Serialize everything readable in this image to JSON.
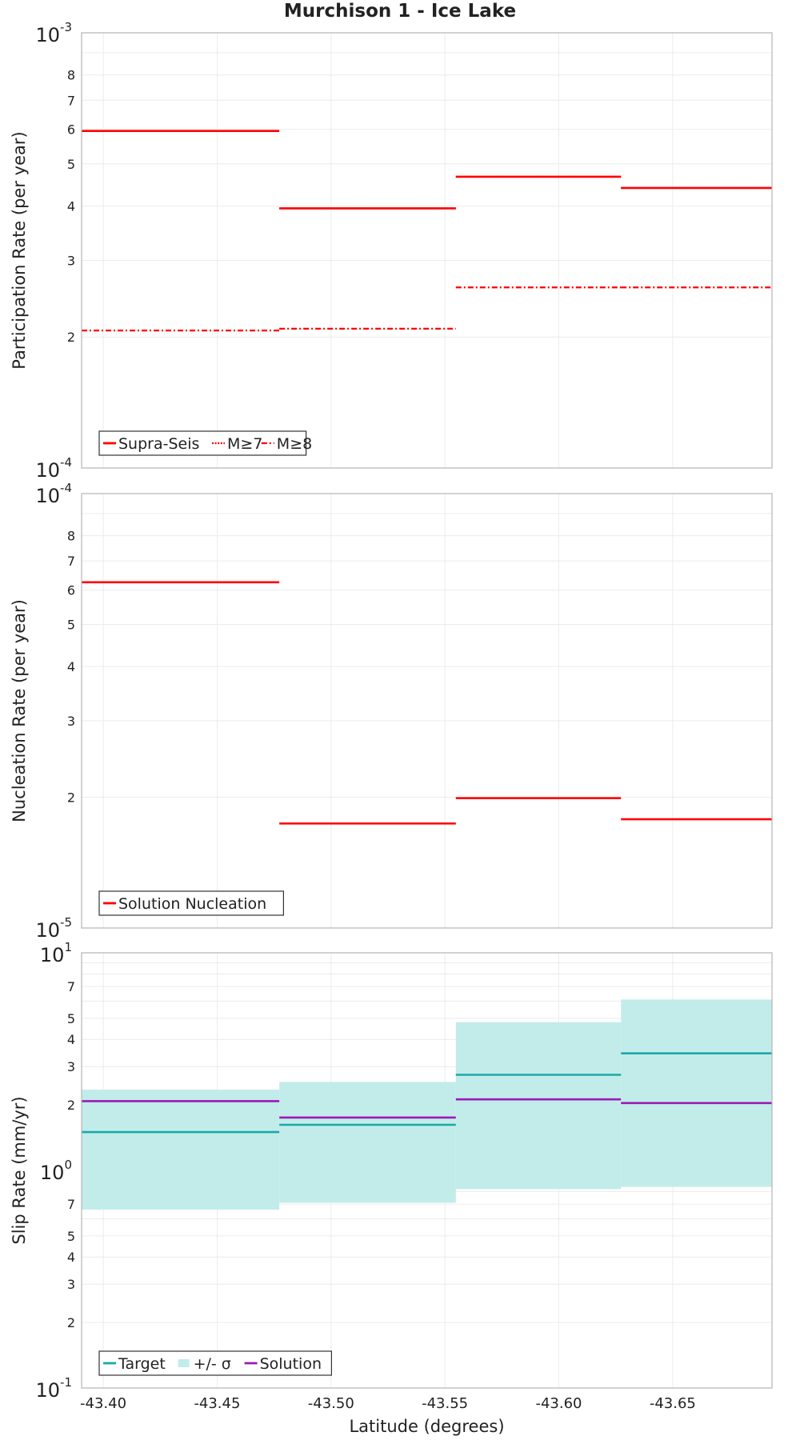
{
  "title": "Murchison 1 - Ice Lake",
  "chart_data": [
    {
      "type": "line",
      "subtype": "step",
      "ylabel": "Participation Rate (per year)",
      "yscale": "log",
      "ylim": [
        0.0001,
        0.001
      ],
      "decade_labels": [
        {
          "value": 0.0001,
          "base": "10",
          "exp": "-4"
        },
        {
          "value": 0.001,
          "base": "10",
          "exp": "-3"
        }
      ],
      "minor_ticks": [
        {
          "value": 0.0002,
          "label": "2"
        },
        {
          "value": 0.0003,
          "label": "3"
        },
        {
          "value": 0.0004,
          "label": "4"
        },
        {
          "value": 0.0005,
          "label": "5"
        },
        {
          "value": 0.0006,
          "label": "6"
        },
        {
          "value": 0.0007,
          "label": "7"
        },
        {
          "value": 0.0008,
          "label": "8"
        }
      ],
      "grid": true,
      "legend_position": "bottom-left",
      "series": [
        {
          "name": "Supra-Seis",
          "color": "#ff0000",
          "style": "solid",
          "steps": [
            [
              -43.3905,
              -43.4773,
              0.000595
            ],
            [
              -43.4773,
              -43.5548,
              0.000395
            ],
            [
              -43.5548,
              -43.6273,
              0.000467
            ],
            [
              -43.6273,
              -43.6936,
              0.00044
            ]
          ]
        },
        {
          "name": "M≥7",
          "color": "#ff0000",
          "style": "dotted",
          "steps": [
            [
              -43.3905,
              -43.4773,
              0.000595
            ],
            [
              -43.4773,
              -43.5548,
              0.000395
            ],
            [
              -43.5548,
              -43.6273,
              0.000467
            ],
            [
              -43.6273,
              -43.6936,
              0.00044
            ]
          ]
        },
        {
          "name": "M≥8",
          "color": "#ff0000",
          "style": "dashdot",
          "steps": [
            [
              -43.3905,
              -43.4773,
              0.000207
            ],
            [
              -43.4773,
              -43.5548,
              0.000209
            ],
            [
              -43.5548,
              -43.6273,
              0.00026
            ],
            [
              -43.6273,
              -43.6936,
              0.00026
            ]
          ]
        }
      ]
    },
    {
      "type": "line",
      "subtype": "step",
      "ylabel": "Nucleation Rate (per year)",
      "yscale": "log",
      "ylim": [
        1e-05,
        0.0001
      ],
      "decade_labels": [
        {
          "value": 1e-05,
          "base": "10",
          "exp": "-5"
        },
        {
          "value": 0.0001,
          "base": "10",
          "exp": "-4"
        }
      ],
      "minor_ticks": [
        {
          "value": 2e-05,
          "label": "2"
        },
        {
          "value": 3e-05,
          "label": "3"
        },
        {
          "value": 4e-05,
          "label": "4"
        },
        {
          "value": 5e-05,
          "label": "5"
        },
        {
          "value": 6e-05,
          "label": "6"
        },
        {
          "value": 7e-05,
          "label": "7"
        },
        {
          "value": 8e-05,
          "label": "8"
        }
      ],
      "grid": true,
      "legend_position": "bottom-left",
      "series": [
        {
          "name": "Solution Nucleation",
          "color": "#ff0000",
          "style": "solid",
          "steps": [
            [
              -43.3905,
              -43.4773,
              6.25e-05
            ],
            [
              -43.4773,
              -43.5548,
              1.74e-05
            ],
            [
              -43.5548,
              -43.6273,
              1.99e-05
            ],
            [
              -43.6273,
              -43.6936,
              1.78e-05
            ]
          ]
        }
      ]
    },
    {
      "type": "line",
      "subtype": "step",
      "ylabel": "Slip Rate (mm/yr)",
      "xlabel": "Latitude (degrees)",
      "yscale": "log",
      "ylim": [
        0.1,
        10
      ],
      "xlim": [
        -43.3905,
        -43.6936
      ],
      "x_ticks": [
        "-43.40",
        "-43.45",
        "-43.50",
        "-43.55",
        "-43.60",
        "-43.65"
      ],
      "x_tick_values": [
        -43.4,
        -43.45,
        -43.5,
        -43.55,
        -43.6,
        -43.65
      ],
      "decade_labels": [
        {
          "value": 0.1,
          "base": "10",
          "exp": "-1"
        },
        {
          "value": 1,
          "base": "10",
          "exp": "0"
        },
        {
          "value": 10,
          "base": "10",
          "exp": "1"
        }
      ],
      "minor_ticks": [
        {
          "value": 0.2,
          "label": "2"
        },
        {
          "value": 0.3,
          "label": "3"
        },
        {
          "value": 0.4,
          "label": "4"
        },
        {
          "value": 0.5,
          "label": "5"
        },
        {
          "value": 0.7,
          "label": "7"
        },
        {
          "value": 2,
          "label": "2"
        },
        {
          "value": 3,
          "label": "3"
        },
        {
          "value": 4,
          "label": "4"
        },
        {
          "value": 5,
          "label": "5"
        },
        {
          "value": 7,
          "label": "7"
        }
      ],
      "grid_minor": [
        0.2,
        0.3,
        0.4,
        0.5,
        0.6,
        0.7,
        0.8,
        0.9,
        2,
        3,
        4,
        5,
        6,
        7,
        8,
        9
      ],
      "grid": true,
      "legend_position": "bottom-left",
      "band": {
        "name": "+/- σ",
        "color": "#c2ecea",
        "steps": [
          [
            -43.3905,
            -43.4773,
            0.66,
            2.35
          ],
          [
            -43.4773,
            -43.5548,
            0.71,
            2.55
          ],
          [
            -43.5548,
            -43.6273,
            0.82,
            4.8
          ],
          [
            -43.6273,
            -43.6936,
            0.84,
            6.1
          ]
        ]
      },
      "series": [
        {
          "name": "Target",
          "color": "#1aa8a8",
          "style": "solid",
          "steps": [
            [
              -43.3905,
              -43.4773,
              1.5
            ],
            [
              -43.4773,
              -43.5548,
              1.62
            ],
            [
              -43.5548,
              -43.6273,
              2.75
            ],
            [
              -43.6273,
              -43.6936,
              3.45
            ]
          ]
        },
        {
          "name": "Solution",
          "color": "#9b19b5",
          "style": "solid",
          "steps": [
            [
              -43.3905,
              -43.4773,
              2.08
            ],
            [
              -43.4773,
              -43.5548,
              1.75
            ],
            [
              -43.5548,
              -43.6273,
              2.12
            ],
            [
              -43.6273,
              -43.6936,
              2.04
            ]
          ]
        }
      ],
      "legend_items": [
        {
          "name": "Target",
          "color": "#1aa8a8",
          "kind": "line"
        },
        {
          "name": "+/- σ",
          "color": "#c2ecea",
          "kind": "patch"
        },
        {
          "name": "Solution",
          "color": "#9b19b5",
          "kind": "line"
        }
      ]
    }
  ]
}
